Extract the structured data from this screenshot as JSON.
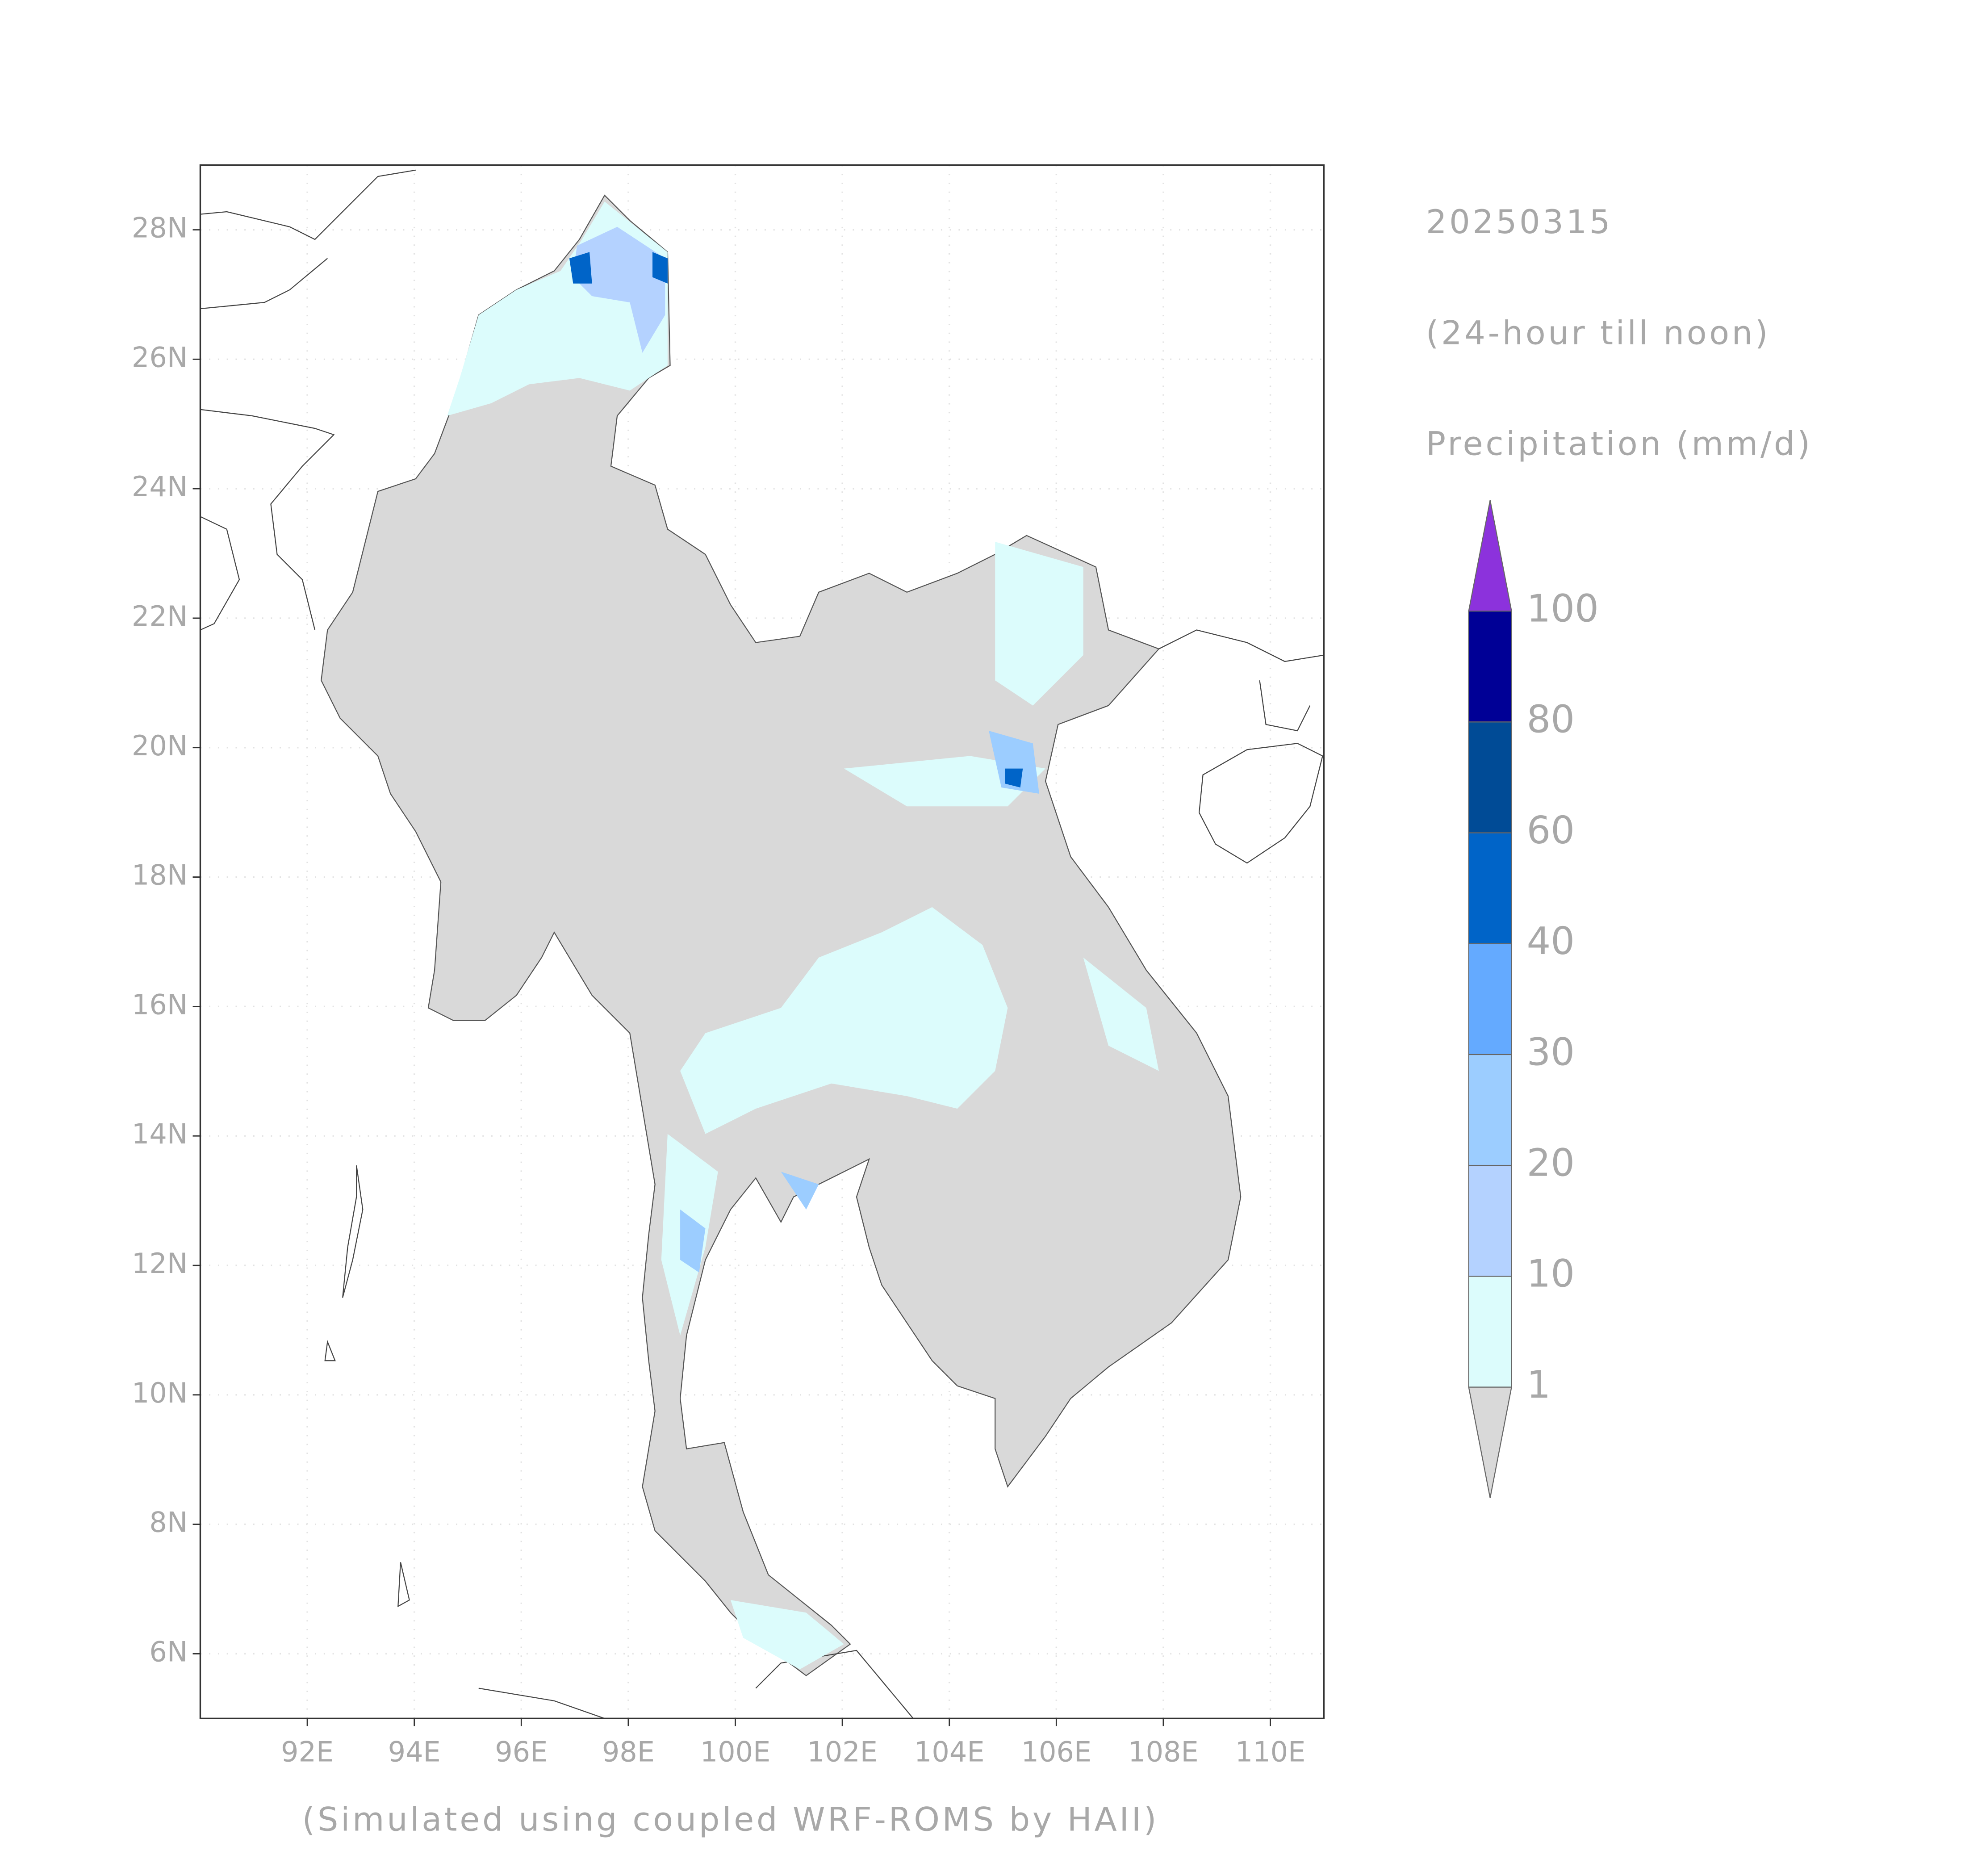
{
  "header": {
    "date": "20250315",
    "period": "(24-hour till noon)",
    "variable": "Precipitation (mm/d)"
  },
  "footer": "(Simulated using coupled WRF-ROMS by HAII)",
  "map": {
    "xlim": [
      90,
      111
    ],
    "ylim": [
      5,
      29
    ],
    "xticks": [
      {
        "value": 92,
        "label": "92E"
      },
      {
        "value": 94,
        "label": "94E"
      },
      {
        "value": 96,
        "label": "96E"
      },
      {
        "value": 98,
        "label": "98E"
      },
      {
        "value": 100,
        "label": "100E"
      },
      {
        "value": 102,
        "label": "102E"
      },
      {
        "value": 104,
        "label": "104E"
      },
      {
        "value": 106,
        "label": "106E"
      },
      {
        "value": 108,
        "label": "108E"
      },
      {
        "value": 110,
        "label": "110E"
      }
    ],
    "yticks": [
      {
        "value": 6,
        "label": "6N"
      },
      {
        "value": 8,
        "label": "8N"
      },
      {
        "value": 10,
        "label": "10N"
      },
      {
        "value": 12,
        "label": "12N"
      },
      {
        "value": 14,
        "label": "14N"
      },
      {
        "value": 16,
        "label": "16N"
      },
      {
        "value": 18,
        "label": "18N"
      },
      {
        "value": 20,
        "label": "20N"
      },
      {
        "value": 22,
        "label": "22N"
      },
      {
        "value": 24,
        "label": "24N"
      },
      {
        "value": 26,
        "label": "26N"
      },
      {
        "value": 28,
        "label": "28N"
      }
    ],
    "grid": true
  },
  "colorbar": {
    "levels": [
      1,
      10,
      20,
      30,
      40,
      60,
      80,
      100
    ],
    "colors": [
      "#dcfcfc",
      "#b4d2ff",
      "#9ccdff",
      "#64aaff",
      "#0064c8",
      "#004b96",
      "#000096"
    ],
    "under_color": "#d9d9d9",
    "over_color": "#8c32dc"
  }
}
